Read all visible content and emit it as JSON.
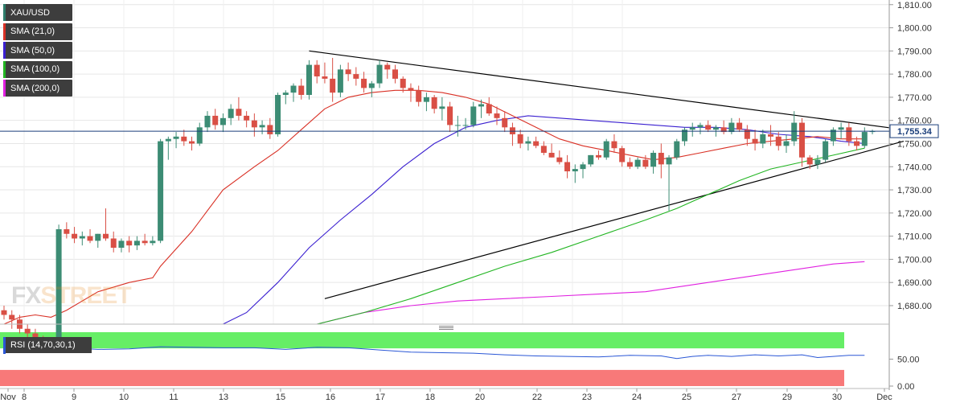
{
  "symbol": "XAU/USD",
  "legend": [
    {
      "label": "XAU/USD",
      "color": "#2e7d6b"
    },
    {
      "label": "SMA (21,0)",
      "color": "#d93025"
    },
    {
      "label": "SMA (50,0)",
      "color": "#3a1fd0"
    },
    {
      "label": "SMA (100,0)",
      "color": "#22b522"
    },
    {
      "label": "SMA (200,0)",
      "color": "#e020e0"
    }
  ],
  "rsi_legend": {
    "label": "RSI (14,70,30,1)",
    "color": "#2a57d6"
  },
  "watermark": {
    "part1": "FX",
    "part2": "STREET"
  },
  "current_price_label": "1,755.34",
  "colors": {
    "up": "#3c8c74",
    "down": "#d94f45",
    "price_line": "#1a3e7a",
    "rsi_overbought": "#66ee66",
    "rsi_oversold": "#f87979",
    "trendline": "#000000"
  },
  "chart_data": {
    "type": "candlestick",
    "y_axis": {
      "range": [
        1672,
        1812
      ],
      "ticks": [
        "1,680.00",
        "1,690.00",
        "1,700.00",
        "1,710.00",
        "1,720.00",
        "1,730.00",
        "1,740.00",
        "1,750.00",
        "1,760.00",
        "1,770.00",
        "1,780.00",
        "1,790.00",
        "1,800.00",
        "1,810.00"
      ]
    },
    "x_axis": {
      "ticks": [
        "Nov",
        "8",
        "9",
        "10",
        "11",
        "13",
        "15",
        "16",
        "17",
        "18",
        "20",
        "22",
        "23",
        "24",
        "25",
        "27",
        "29",
        "30",
        "Dec"
      ]
    },
    "current_price": 1755.34,
    "candles": [
      [
        1678,
        1680,
        1674,
        1676
      ],
      [
        1676,
        1678,
        1670,
        1674
      ],
      [
        1674,
        1676,
        1668,
        1670
      ],
      [
        1670,
        1672,
        1664,
        1668
      ],
      [
        1668,
        1670,
        1662,
        1665
      ],
      [
        1665,
        1667,
        1660,
        1663
      ],
      [
        1663,
        1666,
        1660,
        1664
      ],
      [
        1666,
        1715,
        1664,
        1713
      ],
      [
        1713,
        1716,
        1709,
        1711
      ],
      [
        1711,
        1714,
        1707,
        1709
      ],
      [
        1709,
        1712,
        1706,
        1710
      ],
      [
        1710,
        1713,
        1707,
        1708
      ],
      [
        1708,
        1711,
        1705,
        1711
      ],
      [
        1711,
        1722,
        1708,
        1709
      ],
      [
        1709,
        1712,
        1703,
        1705
      ],
      [
        1705,
        1709,
        1703,
        1708
      ],
      [
        1708,
        1710,
        1703,
        1706
      ],
      [
        1706,
        1710,
        1704,
        1708
      ],
      [
        1708,
        1711,
        1706,
        1707
      ],
      [
        1707,
        1710,
        1706,
        1708
      ],
      [
        1708,
        1752,
        1707,
        1751
      ],
      [
        1751,
        1753,
        1743,
        1752
      ],
      [
        1752,
        1755,
        1748,
        1753
      ],
      [
        1753,
        1756,
        1749,
        1751
      ],
      [
        1751,
        1753,
        1747,
        1750
      ],
      [
        1750,
        1759,
        1749,
        1757
      ],
      [
        1757,
        1764,
        1755,
        1762
      ],
      [
        1762,
        1765,
        1756,
        1758
      ],
      [
        1758,
        1763,
        1755,
        1761
      ],
      [
        1761,
        1767,
        1758,
        1765
      ],
      [
        1765,
        1770,
        1760,
        1762
      ],
      [
        1762,
        1764,
        1757,
        1760
      ],
      [
        1760,
        1763,
        1753,
        1757
      ],
      [
        1757,
        1760,
        1754,
        1758
      ],
      [
        1758,
        1761,
        1752,
        1754
      ],
      [
        1754,
        1772,
        1753,
        1771
      ],
      [
        1771,
        1773,
        1767,
        1772
      ],
      [
        1772,
        1776,
        1768,
        1775
      ],
      [
        1775,
        1778,
        1769,
        1771
      ],
      [
        1771,
        1786,
        1769,
        1784
      ],
      [
        1784,
        1786,
        1776,
        1779
      ],
      [
        1779,
        1785,
        1776,
        1778
      ],
      [
        1778,
        1787,
        1768,
        1772
      ],
      [
        1772,
        1784,
        1770,
        1782
      ],
      [
        1782,
        1785,
        1777,
        1780
      ],
      [
        1780,
        1783,
        1775,
        1778
      ],
      [
        1778,
        1781,
        1772,
        1774
      ],
      [
        1774,
        1777,
        1770,
        1776
      ],
      [
        1776,
        1786,
        1774,
        1784
      ],
      [
        1784,
        1785,
        1778,
        1782
      ],
      [
        1782,
        1784,
        1776,
        1778
      ],
      [
        1778,
        1779,
        1772,
        1774
      ],
      [
        1774,
        1776,
        1768,
        1773
      ],
      [
        1773,
        1775,
        1766,
        1768
      ],
      [
        1768,
        1772,
        1764,
        1770
      ],
      [
        1770,
        1771,
        1763,
        1765
      ],
      [
        1765,
        1770,
        1760,
        1766
      ],
      [
        1766,
        1768,
        1755,
        1758
      ],
      [
        1758,
        1762,
        1753,
        1758
      ],
      [
        1758,
        1761,
        1756,
        1758
      ],
      [
        1758,
        1768,
        1757,
        1766
      ],
      [
        1766,
        1769,
        1761,
        1767
      ],
      [
        1767,
        1770,
        1762,
        1763
      ],
      [
        1763,
        1766,
        1758,
        1761
      ],
      [
        1761,
        1764,
        1755,
        1757
      ],
      [
        1757,
        1759,
        1749,
        1754
      ],
      [
        1754,
        1756,
        1748,
        1750
      ],
      [
        1750,
        1753,
        1747,
        1751
      ],
      [
        1751,
        1753,
        1748,
        1749
      ],
      [
        1749,
        1751,
        1745,
        1746
      ],
      [
        1746,
        1750,
        1744,
        1744
      ],
      [
        1744,
        1747,
        1741,
        1742
      ],
      [
        1742,
        1745,
        1735,
        1738
      ],
      [
        1738,
        1741,
        1733,
        1739
      ],
      [
        1739,
        1742,
        1735,
        1741
      ],
      [
        1741,
        1745,
        1740,
        1745
      ],
      [
        1745,
        1747,
        1743,
        1744
      ],
      [
        1744,
        1752,
        1743,
        1751
      ],
      [
        1751,
        1754,
        1746,
        1748
      ],
      [
        1748,
        1749,
        1740,
        1742
      ],
      [
        1742,
        1744,
        1739,
        1740
      ],
      [
        1740,
        1744,
        1739,
        1743
      ],
      [
        1743,
        1745,
        1739,
        1740
      ],
      [
        1740,
        1747,
        1737,
        1746
      ],
      [
        1746,
        1750,
        1735,
        1741
      ],
      [
        1741,
        1745,
        1721,
        1744
      ],
      [
        1744,
        1752,
        1743,
        1751
      ],
      [
        1751,
        1757,
        1749,
        1756
      ],
      [
        1756,
        1759,
        1753,
        1757
      ],
      [
        1757,
        1759,
        1754,
        1758
      ],
      [
        1758,
        1760,
        1755,
        1756
      ],
      [
        1756,
        1758,
        1753,
        1757
      ],
      [
        1757,
        1760,
        1754,
        1755
      ],
      [
        1755,
        1761,
        1754,
        1759
      ],
      [
        1759,
        1761,
        1755,
        1756
      ],
      [
        1756,
        1758,
        1749,
        1752
      ],
      [
        1752,
        1756,
        1747,
        1750
      ],
      [
        1750,
        1756,
        1748,
        1754
      ],
      [
        1754,
        1758,
        1749,
        1753
      ],
      [
        1753,
        1755,
        1747,
        1749
      ],
      [
        1749,
        1754,
        1746,
        1751
      ],
      [
        1751,
        1764,
        1749,
        1759
      ],
      [
        1759,
        1761,
        1740,
        1744
      ],
      [
        1744,
        1745,
        1739,
        1741
      ],
      [
        1741,
        1745,
        1739,
        1743
      ],
      [
        1743,
        1752,
        1742,
        1751
      ],
      [
        1751,
        1757,
        1749,
        1756
      ],
      [
        1756,
        1759,
        1752,
        1757
      ],
      [
        1757,
        1759,
        1749,
        1751
      ],
      [
        1751,
        1753,
        1747,
        1749
      ],
      [
        1749,
        1757,
        1748,
        1755
      ],
      [
        1755,
        1756,
        1754,
        1755.34
      ]
    ],
    "sma21": [
      [
        0,
        1672
      ],
      [
        2,
        1675
      ],
      [
        4,
        1676
      ],
      [
        6,
        1675
      ],
      [
        8,
        1678
      ],
      [
        12,
        1686
      ],
      [
        16,
        1690
      ],
      [
        19,
        1692
      ],
      [
        20,
        1697
      ],
      [
        24,
        1712
      ],
      [
        28,
        1730
      ],
      [
        32,
        1740
      ],
      [
        35,
        1747
      ],
      [
        38,
        1756
      ],
      [
        41,
        1765
      ],
      [
        44,
        1770
      ],
      [
        47,
        1772
      ],
      [
        50,
        1773
      ],
      [
        53,
        1773
      ],
      [
        56,
        1772
      ],
      [
        59,
        1770
      ],
      [
        62,
        1767
      ],
      [
        65,
        1762
      ],
      [
        68,
        1757
      ],
      [
        71,
        1752
      ],
      [
        74,
        1749
      ],
      [
        77,
        1747
      ],
      [
        80,
        1745
      ],
      [
        83,
        1743
      ],
      [
        86,
        1744
      ],
      [
        89,
        1746
      ],
      [
        92,
        1748
      ],
      [
        95,
        1750
      ],
      [
        98,
        1751
      ],
      [
        101,
        1752
      ],
      [
        104,
        1753
      ],
      [
        107,
        1752
      ],
      [
        110,
        1752
      ]
    ],
    "sma50": [
      [
        28,
        1672
      ],
      [
        31,
        1677
      ],
      [
        35,
        1690
      ],
      [
        39,
        1705
      ],
      [
        43,
        1717
      ],
      [
        47,
        1728
      ],
      [
        51,
        1740
      ],
      [
        55,
        1750
      ],
      [
        59,
        1757
      ],
      [
        63,
        1760
      ],
      [
        67,
        1762
      ],
      [
        71,
        1761
      ],
      [
        75,
        1760
      ],
      [
        79,
        1759
      ],
      [
        83,
        1758
      ],
      [
        87,
        1757
      ],
      [
        91,
        1757
      ],
      [
        95,
        1756
      ],
      [
        99,
        1754
      ],
      [
        103,
        1753
      ],
      [
        107,
        1751
      ],
      [
        110,
        1750
      ]
    ],
    "sma100": [
      [
        40,
        1672
      ],
      [
        46,
        1677
      ],
      [
        52,
        1683
      ],
      [
        58,
        1690
      ],
      [
        64,
        1697
      ],
      [
        70,
        1703
      ],
      [
        76,
        1710
      ],
      [
        82,
        1717
      ],
      [
        86,
        1722
      ],
      [
        90,
        1728
      ],
      [
        94,
        1734
      ],
      [
        98,
        1739
      ],
      [
        102,
        1742
      ],
      [
        106,
        1745
      ],
      [
        110,
        1748
      ]
    ],
    "sma200": [
      [
        40,
        1672
      ],
      [
        46,
        1677
      ],
      [
        52,
        1680
      ],
      [
        58,
        1682
      ],
      [
        64,
        1683
      ],
      [
        70,
        1684
      ],
      [
        76,
        1685
      ],
      [
        82,
        1686
      ],
      [
        86,
        1688
      ],
      [
        90,
        1690
      ],
      [
        94,
        1692
      ],
      [
        98,
        1694
      ],
      [
        102,
        1696
      ],
      [
        106,
        1698
      ],
      [
        110,
        1699
      ]
    ],
    "trendlines": [
      {
        "from": [
          39,
          1790
        ],
        "to": [
          115,
          1756
        ]
      },
      {
        "from": [
          41,
          1683
        ],
        "to": [
          115,
          1751
        ]
      }
    ],
    "rsi": {
      "range": [
        0,
        100
      ],
      "ticks": [
        "50.00",
        "0.00"
      ],
      "overbought": 70,
      "oversold": 30,
      "values": [
        [
          0,
          72
        ],
        [
          4,
          70
        ],
        [
          8,
          71
        ],
        [
          12,
          68
        ],
        [
          16,
          69
        ],
        [
          20,
          73
        ],
        [
          24,
          72
        ],
        [
          28,
          71
        ],
        [
          32,
          71
        ],
        [
          36,
          68
        ],
        [
          40,
          72
        ],
        [
          44,
          71
        ],
        [
          48,
          67
        ],
        [
          52,
          63
        ],
        [
          56,
          62
        ],
        [
          60,
          61
        ],
        [
          64,
          58
        ],
        [
          68,
          56
        ],
        [
          72,
          55
        ],
        [
          76,
          54
        ],
        [
          80,
          57
        ],
        [
          84,
          56
        ],
        [
          86,
          51
        ],
        [
          88,
          55
        ],
        [
          90,
          57
        ],
        [
          93,
          55
        ],
        [
          96,
          58
        ],
        [
          99,
          56
        ],
        [
          102,
          58
        ],
        [
          104,
          53
        ],
        [
          106,
          55
        ],
        [
          108,
          57
        ],
        [
          110,
          57
        ]
      ]
    }
  }
}
